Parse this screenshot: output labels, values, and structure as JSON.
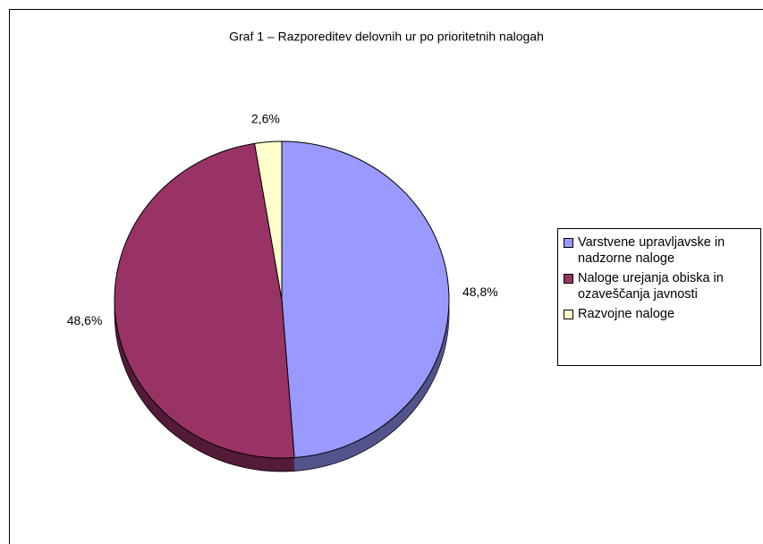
{
  "chart_data": {
    "type": "pie",
    "title": "Graf 1 – Razporeditev delovnih ur po prioritetnih nalogah",
    "categories": [
      "Varstvene upravljavske in nadzorne naloge",
      "Naloge urejanja obiska in ozaveščanja javnosti",
      "Razvojne naloge"
    ],
    "values": [
      48.8,
      48.6,
      2.6
    ],
    "value_labels": [
      "48,8%",
      "48,6%",
      "2,6%"
    ],
    "colors": [
      "#9999ff",
      "#993366",
      "#ffffcc"
    ],
    "legend": "right"
  }
}
